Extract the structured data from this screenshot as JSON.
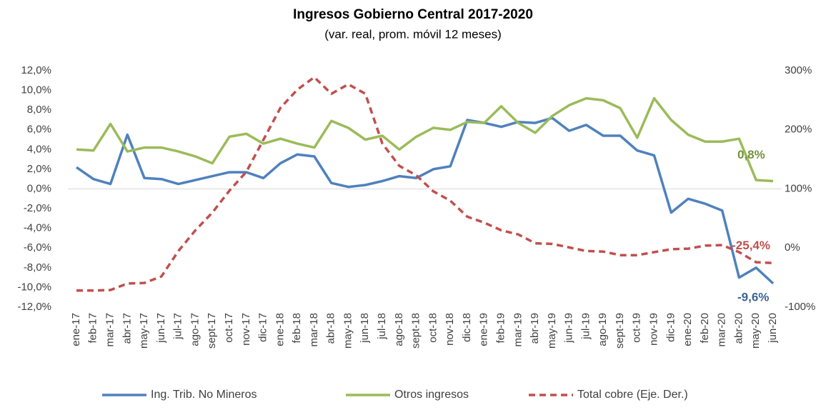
{
  "chart_data": {
    "type": "line",
    "title": "Ingresos Gobierno Central 2017-2020",
    "subtitle": "(var. real, prom. móvil 12 meses)",
    "categories": [
      "ene-17",
      "feb-17",
      "mar-17",
      "abr-17",
      "may-17",
      "jun-17",
      "jul-17",
      "ago-17",
      "sept-17",
      "oct-17",
      "nov-17",
      "dic-17",
      "ene-18",
      "feb-18",
      "mar-18",
      "abr-18",
      "may-18",
      "jun-18",
      "jul-18",
      "ago-18",
      "sept-18",
      "oct-18",
      "nov-18",
      "dic-18",
      "ene-19",
      "feb-19",
      "mar-19",
      "abr-19",
      "may-19",
      "jun-19",
      "jul-19",
      "ago-19",
      "sept-19",
      "oct-19",
      "nov-19",
      "dic-19",
      "ene-20",
      "feb-20",
      "mar-20",
      "abr-20",
      "may-20",
      "jun-20"
    ],
    "series": [
      {
        "name": "Ing. Trib. No Mineros",
        "color": "#4f81bd",
        "label_color": "#3c6595",
        "axis": "y",
        "values": [
          2.2,
          1.0,
          0.5,
          5.5,
          1.1,
          1.0,
          0.5,
          0.9,
          1.3,
          1.7,
          1.7,
          1.1,
          2.6,
          3.5,
          3.3,
          0.6,
          0.2,
          0.4,
          0.8,
          1.3,
          1.1,
          2.0,
          2.3,
          7.0,
          6.7,
          6.3,
          6.8,
          6.7,
          7.2,
          5.9,
          6.5,
          5.4,
          5.4,
          3.9,
          3.4,
          -2.4,
          -1.0,
          -1.5,
          -2.2,
          -9.0,
          -8.0,
          -9.6
        ],
        "value_labels": [
          null,
          null,
          null,
          null,
          null,
          null,
          null,
          null,
          null,
          null,
          null,
          null,
          null,
          null,
          null,
          null,
          null,
          null,
          null,
          null,
          null,
          null,
          null,
          null,
          null,
          null,
          null,
          null,
          null,
          null,
          null,
          null,
          null,
          null,
          null,
          null,
          null,
          null,
          null,
          null,
          null,
          "-9,6%"
        ]
      },
      {
        "name": "Otros ingresos",
        "color": "#9bbb59",
        "label_color": "#76923c",
        "axis": "y",
        "values": [
          4.0,
          3.9,
          6.6,
          3.8,
          4.2,
          4.2,
          3.8,
          3.3,
          2.6,
          5.3,
          5.6,
          4.6,
          5.1,
          4.6,
          4.2,
          6.9,
          6.2,
          5.0,
          5.4,
          4.0,
          5.3,
          6.2,
          6.0,
          6.8,
          6.7,
          8.4,
          6.7,
          5.7,
          7.4,
          8.5,
          9.2,
          9.0,
          8.2,
          5.2,
          9.2,
          7.0,
          5.5,
          4.8,
          4.8,
          5.1,
          0.9,
          0.8
        ],
        "value_labels": [
          null,
          null,
          null,
          null,
          null,
          null,
          null,
          null,
          null,
          null,
          null,
          null,
          null,
          null,
          null,
          null,
          null,
          null,
          null,
          null,
          null,
          null,
          null,
          null,
          null,
          null,
          null,
          null,
          null,
          null,
          null,
          null,
          null,
          null,
          null,
          null,
          null,
          null,
          null,
          null,
          null,
          "0,8%"
        ]
      },
      {
        "name": "Total cobre (Eje. Der.)",
        "color": "#c0504d",
        "label_color": "#c0504d",
        "axis": "y2",
        "dashed": true,
        "values": [
          -72,
          -72,
          -71,
          -60,
          -59,
          -48,
          -5,
          30,
          60,
          97,
          129,
          183,
          237,
          268,
          289,
          261,
          277,
          261,
          177,
          139,
          123,
          96,
          80,
          53,
          43,
          30,
          23,
          8,
          7,
          1,
          -5,
          -6,
          -12,
          -12,
          -7,
          -2,
          -1,
          4,
          5,
          -7,
          -24,
          -25.4
        ],
        "value_labels": [
          null,
          null,
          null,
          null,
          null,
          null,
          null,
          null,
          null,
          null,
          null,
          null,
          null,
          null,
          null,
          null,
          null,
          null,
          null,
          null,
          null,
          null,
          null,
          null,
          null,
          null,
          null,
          null,
          null,
          null,
          null,
          null,
          null,
          null,
          null,
          null,
          null,
          null,
          null,
          null,
          null,
          "-25,4%"
        ]
      }
    ],
    "ylim": [
      -12,
      12
    ],
    "yticks": [
      {
        "value": -12,
        "label": "-12,0%"
      },
      {
        "value": -10,
        "label": "-10,0%"
      },
      {
        "value": -8,
        "label": "-8,0%"
      },
      {
        "value": -6,
        "label": "-6,0%"
      },
      {
        "value": -4,
        "label": "-4,0%"
      },
      {
        "value": -2,
        "label": "-2,0%"
      },
      {
        "value": 0,
        "label": "0,0%"
      },
      {
        "value": 2,
        "label": "2,0%"
      },
      {
        "value": 4,
        "label": "4,0%"
      },
      {
        "value": 6,
        "label": "6,0%"
      },
      {
        "value": 8,
        "label": "8,0%"
      },
      {
        "value": 10,
        "label": "10,0%"
      },
      {
        "value": 12,
        "label": "12,0%"
      }
    ],
    "y2lim": [
      -100,
      300
    ],
    "y2ticks": [
      {
        "value": -100,
        "label": "-100%"
      },
      {
        "value": 0,
        "label": "0%"
      },
      {
        "value": 100,
        "label": "100%"
      },
      {
        "value": 200,
        "label": "200%"
      },
      {
        "value": 300,
        "label": "300%"
      }
    ],
    "grid": false,
    "legend": "bottom"
  }
}
